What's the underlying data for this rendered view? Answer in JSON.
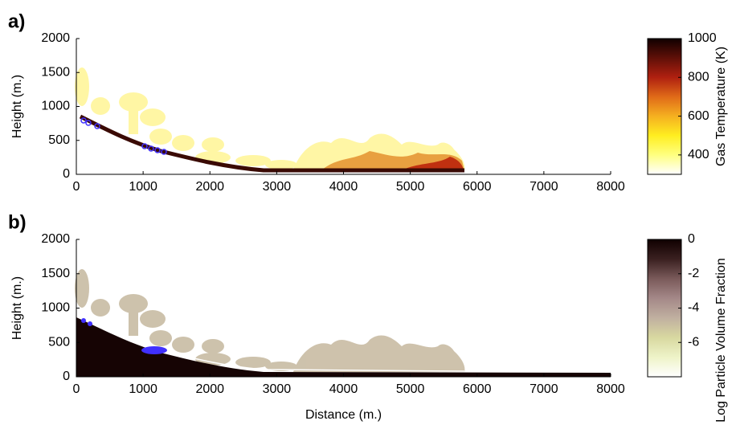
{
  "chart_data": [
    {
      "type": "heatmap",
      "panel_label": "a)",
      "ylabel": "Height (m.)",
      "xlim": [
        0,
        8000
      ],
      "xticks": [
        0,
        1000,
        2000,
        3000,
        4000,
        5000,
        6000,
        7000,
        8000
      ],
      "ylim": [
        0,
        2000
      ],
      "yticks": [
        0,
        500,
        1000,
        1500,
        2000
      ],
      "colorbar": {
        "label": "Gas Temperature (K)",
        "lim": [
          300,
          1000
        ],
        "ticks": [
          400,
          600,
          800,
          1000
        ],
        "colormap": [
          "#ffffff",
          "#ffff80",
          "#ffee20",
          "#f5b020",
          "#e06a18",
          "#b02010",
          "#601008",
          "#100000"
        ]
      }
    },
    {
      "type": "heatmap",
      "panel_label": "b)",
      "xlabel": "Distance (m.)",
      "ylabel": "Height (m.)",
      "xlim": [
        0,
        8000
      ],
      "xticks": [
        0,
        1000,
        2000,
        3000,
        4000,
        5000,
        6000,
        7000,
        8000
      ],
      "ylim": [
        0,
        2000
      ],
      "yticks": [
        0,
        500,
        1000,
        1500,
        2000
      ],
      "colorbar": {
        "label": "Log Particle Volume Fraction",
        "lim": [
          -8,
          0
        ],
        "ticks": [
          -6,
          -4,
          -2,
          0
        ],
        "colormap": [
          "#ffffff",
          "#eef3c8",
          "#d8d8a0",
          "#c0b0a0",
          "#a48888",
          "#7a5a5a",
          "#3a2020",
          "#100000"
        ]
      }
    }
  ]
}
